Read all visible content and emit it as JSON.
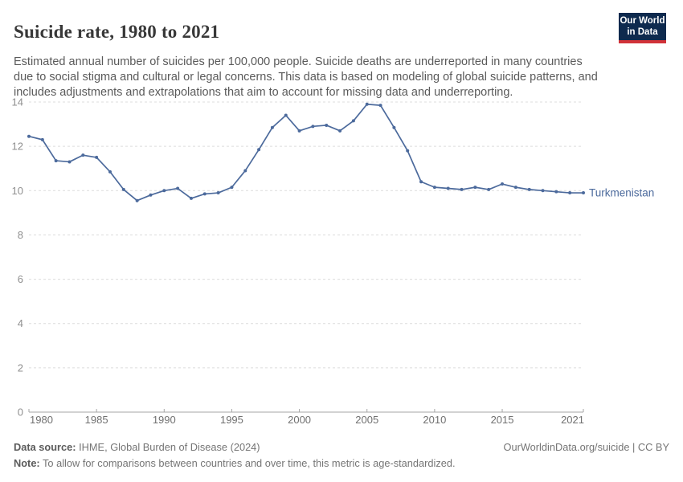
{
  "header": {
    "title": "Suicide rate, 1980 to 2021",
    "subtitle": "Estimated annual number of suicides per 100,000 people. Suicide deaths are underreported in many countries due to social stigma and cultural or legal concerns. This data is based on modeling of global suicide patterns, and includes adjustments and extrapolations that aim to account for missing data and underreporting.",
    "logo": {
      "line1": "Our World",
      "line2": "in Data"
    }
  },
  "colors": {
    "line": "#4c6a9c",
    "logo_background": "#0e2a4e",
    "logo_red_bar": "#d13239",
    "grid": "#dcdcdc",
    "axis": "#a6a6a6",
    "title_text": "#383838",
    "subtitle_text": "#5a5a5a",
    "footer_text": "#757575"
  },
  "chart_data": {
    "type": "line",
    "title": "Suicide rate, 1980 to 2021",
    "xlabel": "",
    "ylabel": "",
    "xlim": [
      1980,
      2021
    ],
    "ylim": [
      0,
      14
    ],
    "x_ticks": [
      1980,
      1985,
      1990,
      1995,
      2000,
      2005,
      2010,
      2015,
      2021
    ],
    "y_ticks": [
      0,
      2,
      4,
      6,
      8,
      10,
      12,
      14
    ],
    "grid": "horizontal dashed",
    "legend_position": "end-of-line label",
    "x": [
      1980,
      1981,
      1982,
      1983,
      1984,
      1985,
      1986,
      1987,
      1988,
      1989,
      1990,
      1991,
      1992,
      1993,
      1994,
      1995,
      1996,
      1997,
      1998,
      1999,
      2000,
      2001,
      2002,
      2003,
      2004,
      2005,
      2006,
      2007,
      2008,
      2009,
      2010,
      2011,
      2012,
      2013,
      2014,
      2015,
      2016,
      2017,
      2018,
      2019,
      2020,
      2021
    ],
    "series": [
      {
        "name": "Turkmenistan",
        "color": "#4c6a9c",
        "values": [
          12.45,
          12.3,
          11.35,
          11.3,
          11.6,
          11.5,
          10.85,
          10.05,
          9.55,
          9.8,
          10.0,
          10.1,
          9.65,
          9.85,
          9.9,
          10.15,
          10.9,
          11.85,
          12.85,
          13.4,
          12.7,
          12.9,
          12.95,
          12.7,
          13.15,
          13.9,
          13.85,
          12.85,
          11.8,
          10.4,
          10.15,
          10.1,
          10.05,
          10.15,
          10.05,
          10.3,
          10.15,
          10.05,
          10.0,
          9.95,
          9.9,
          9.9
        ]
      }
    ]
  },
  "footer": {
    "data_source_label": "Data source:",
    "data_source": " IHME, Global Burden of Disease (2024)",
    "attribution": "OurWorldinData.org/suicide | CC BY",
    "note_label": "Note:",
    "note": " To allow for comparisons between countries and over time, this metric is age-standardized."
  }
}
